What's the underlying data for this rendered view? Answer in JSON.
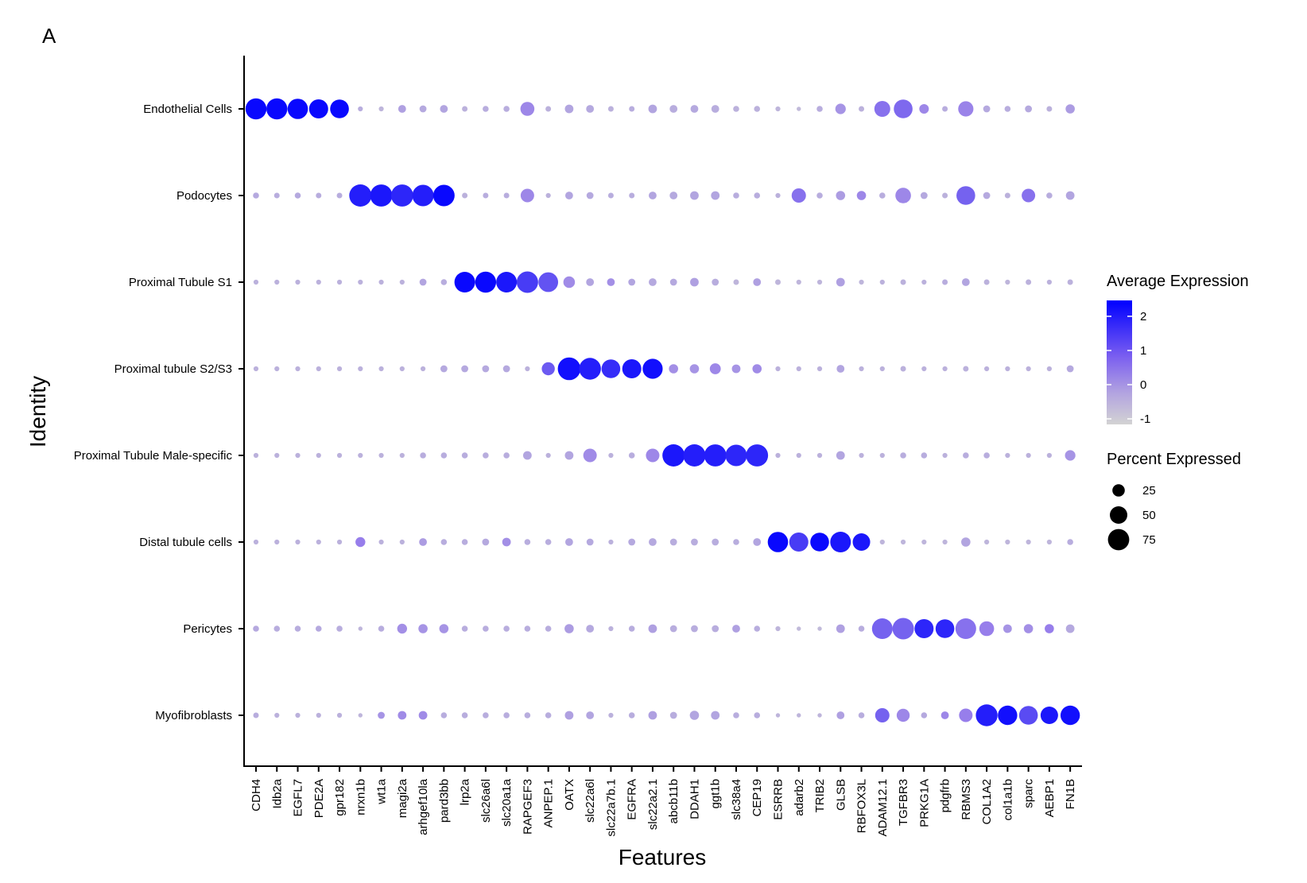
{
  "panel_label": "A",
  "chart_data": {
    "type": "dotplot",
    "title": "",
    "xlabel": "Features",
    "ylabel": "Identity",
    "features": [
      "CDH4",
      "Idb2a",
      "EGFL7",
      "PDE2A",
      "gpr182",
      "nrxn1b",
      "wt1a",
      "magi2a",
      "arhgef10la",
      "pard3bb",
      "lrp2a",
      "slc26a6l",
      "slc20a1a",
      "RAPGEF3",
      "ANPEP.1",
      "OATX",
      "slc22a6l",
      "slc22a7b.1",
      "EGFRA",
      "slc22a2.1",
      "abcb11b",
      "DDAH1",
      "ggt1b",
      "slc38a4",
      "CEP19",
      "ESRRB",
      "adarb2",
      "TRIB2",
      "GLSB",
      "RBFOX3L",
      "ADAM12.1",
      "TGFBR3",
      "PRKG1A",
      "pdgfrb",
      "RBMS3",
      "COL1A2",
      "col1a1b",
      "sparc",
      "AEBP1",
      "FN1B"
    ],
    "identities": [
      "Endothelial Cells",
      "Podocytes",
      "Proximal Tubule S1",
      "Proximal tubule S2/S3",
      "Proximal Tubule Male-specific",
      "Distal tubule cells",
      "Pericytes",
      "Myofibroblasts"
    ],
    "legend": {
      "color_title": "Average Expression",
      "color_ticks": [
        "2",
        "1",
        "0",
        "-1"
      ],
      "color_range": [
        -1.2,
        2.5
      ],
      "color_low": "#d3d3d3",
      "color_high": "#0000ff",
      "size_title": "Percent Expressed",
      "size_ticks": [
        "25",
        "50",
        "75"
      ]
    },
    "rows": [
      {
        "identity": "Endothelial Cells",
        "avg_exp": [
          2.4,
          2.4,
          2.4,
          2.4,
          2.4,
          -0.3,
          -0.5,
          0.0,
          -0.2,
          -0.1,
          -0.4,
          -0.3,
          -0.3,
          0.6,
          -0.4,
          -0.1,
          -0.2,
          -0.4,
          -0.3,
          -0.1,
          -0.3,
          -0.2,
          -0.3,
          -0.4,
          -0.4,
          -0.5,
          -0.6,
          -0.3,
          0.3,
          -0.4,
          1.0,
          1.1,
          0.6,
          -0.3,
          0.7,
          -0.2,
          -0.3,
          -0.2,
          -0.4,
          0.1
        ],
        "pct_exp": [
          72,
          72,
          68,
          60,
          58,
          4,
          4,
          10,
          8,
          10,
          5,
          6,
          6,
          32,
          5,
          12,
          10,
          5,
          5,
          12,
          10,
          10,
          10,
          6,
          6,
          4,
          3,
          6,
          18,
          5,
          42,
          58,
          15,
          5,
          38,
          8,
          6,
          8,
          5,
          14
        ]
      },
      {
        "identity": "Podocytes",
        "avg_exp": [
          -0.2,
          -0.3,
          -0.2,
          -0.3,
          -0.3,
          2.1,
          2.2,
          2.0,
          2.1,
          2.4,
          -0.4,
          -0.3,
          -0.3,
          0.6,
          -0.4,
          -0.1,
          -0.2,
          -0.3,
          -0.3,
          -0.1,
          -0.2,
          -0.1,
          -0.1,
          -0.3,
          -0.3,
          -0.4,
          1.0,
          -0.3,
          0.1,
          0.6,
          -0.3,
          0.6,
          -0.2,
          -0.4,
          1.2,
          -0.2,
          -0.4,
          1.0,
          -0.3,
          -0.1
        ],
        "pct_exp": [
          6,
          5,
          6,
          5,
          5,
          82,
          80,
          80,
          76,
          76,
          5,
          5,
          5,
          30,
          4,
          10,
          8,
          5,
          5,
          10,
          10,
          12,
          12,
          6,
          6,
          4,
          34,
          6,
          14,
          14,
          6,
          40,
          8,
          5,
          58,
          8,
          5,
          30,
          6,
          12
        ]
      },
      {
        "identity": "Proximal Tubule S1",
        "avg_exp": [
          -0.4,
          -0.4,
          -0.4,
          -0.4,
          -0.4,
          -0.4,
          -0.4,
          -0.4,
          -0.1,
          -0.3,
          2.4,
          2.4,
          2.2,
          1.7,
          1.4,
          0.5,
          -0.1,
          0.4,
          -0.1,
          -0.2,
          -0.2,
          0.0,
          -0.3,
          -0.5,
          0.0,
          -0.5,
          -0.5,
          -0.5,
          0.0,
          -0.5,
          -0.4,
          -0.4,
          -0.4,
          -0.3,
          -0.1,
          -0.4,
          -0.5,
          -0.4,
          -0.4,
          -0.4
        ],
        "pct_exp": [
          4,
          4,
          4,
          4,
          4,
          4,
          4,
          4,
          8,
          6,
          70,
          72,
          70,
          76,
          64,
          22,
          10,
          10,
          8,
          10,
          8,
          12,
          8,
          5,
          10,
          5,
          4,
          4,
          12,
          4,
          4,
          5,
          4,
          5,
          10,
          5,
          4,
          5,
          4,
          5
        ]
      },
      {
        "identity": "Proximal tubule S2/S3",
        "avg_exp": [
          -0.4,
          -0.4,
          -0.4,
          -0.4,
          -0.4,
          -0.4,
          -0.4,
          -0.4,
          -0.4,
          -0.2,
          -0.2,
          -0.2,
          -0.2,
          -0.4,
          1.3,
          2.3,
          2.1,
          1.9,
          2.2,
          2.3,
          0.4,
          0.3,
          0.6,
          0.3,
          0.5,
          -0.4,
          -0.4,
          -0.4,
          -0.1,
          -0.4,
          -0.4,
          -0.4,
          -0.4,
          -0.4,
          -0.4,
          -0.4,
          -0.4,
          -0.4,
          -0.4,
          -0.2
        ],
        "pct_exp": [
          4,
          4,
          4,
          4,
          4,
          4,
          4,
          4,
          4,
          8,
          8,
          8,
          8,
          4,
          28,
          85,
          78,
          58,
          60,
          66,
          14,
          14,
          20,
          12,
          14,
          4,
          4,
          4,
          10,
          4,
          4,
          5,
          4,
          4,
          5,
          4,
          4,
          4,
          4,
          8
        ]
      },
      {
        "identity": "Proximal Tubule Male-specific",
        "avg_exp": [
          -0.4,
          -0.4,
          -0.4,
          -0.4,
          -0.4,
          -0.4,
          -0.4,
          -0.4,
          -0.3,
          -0.3,
          -0.3,
          -0.3,
          -0.3,
          -0.1,
          -0.4,
          -0.1,
          0.5,
          -0.4,
          -0.3,
          0.6,
          2.2,
          2.1,
          2.1,
          2.0,
          2.0,
          -0.4,
          -0.4,
          -0.4,
          -0.1,
          -0.4,
          -0.4,
          -0.3,
          -0.3,
          -0.4,
          -0.3,
          -0.3,
          -0.4,
          -0.4,
          -0.4,
          0.3
        ],
        "pct_exp": [
          4,
          4,
          4,
          4,
          4,
          4,
          4,
          4,
          6,
          6,
          6,
          6,
          6,
          12,
          4,
          12,
          30,
          4,
          6,
          30,
          82,
          82,
          80,
          76,
          80,
          4,
          4,
          4,
          12,
          4,
          4,
          6,
          6,
          4,
          6,
          6,
          4,
          4,
          4,
          18
        ]
      },
      {
        "identity": "Distal tubule cells",
        "avg_exp": [
          -0.4,
          -0.4,
          -0.4,
          -0.4,
          -0.4,
          0.8,
          -0.4,
          -0.4,
          0.1,
          -0.3,
          -0.3,
          -0.2,
          0.4,
          -0.3,
          -0.3,
          -0.1,
          -0.2,
          -0.4,
          -0.2,
          -0.2,
          -0.3,
          -0.3,
          -0.3,
          -0.3,
          -0.1,
          2.4,
          1.7,
          2.4,
          2.2,
          2.2,
          -0.5,
          -0.5,
          -0.5,
          -0.5,
          -0.1,
          -0.5,
          -0.5,
          -0.5,
          -0.5,
          -0.3
        ],
        "pct_exp": [
          4,
          4,
          4,
          4,
          4,
          16,
          4,
          4,
          10,
          6,
          6,
          8,
          12,
          6,
          6,
          10,
          8,
          4,
          8,
          10,
          8,
          8,
          8,
          6,
          10,
          68,
          60,
          58,
          70,
          50,
          4,
          4,
          4,
          4,
          14,
          4,
          4,
          4,
          4,
          6
        ]
      },
      {
        "identity": "Pericytes",
        "avg_exp": [
          -0.2,
          -0.3,
          -0.3,
          -0.2,
          -0.3,
          -0.5,
          -0.3,
          0.4,
          0.3,
          0.3,
          -0.3,
          -0.3,
          -0.3,
          -0.3,
          -0.3,
          0.1,
          -0.2,
          -0.4,
          -0.3,
          0.0,
          -0.3,
          -0.3,
          -0.3,
          0.0,
          -0.3,
          -0.5,
          -0.6,
          -0.6,
          0.0,
          -0.3,
          1.2,
          1.2,
          2.0,
          2.0,
          1.0,
          0.8,
          0.3,
          0.4,
          0.8,
          -0.2
        ],
        "pct_exp": [
          6,
          6,
          6,
          6,
          6,
          3,
          6,
          16,
          14,
          14,
          6,
          6,
          6,
          6,
          6,
          14,
          10,
          4,
          6,
          12,
          8,
          8,
          8,
          10,
          6,
          4,
          3,
          3,
          12,
          6,
          70,
          76,
          60,
          58,
          70,
          36,
          12,
          14,
          14,
          12
        ]
      },
      {
        "identity": "Myofibroblasts",
        "avg_exp": [
          -0.3,
          -0.4,
          -0.4,
          -0.4,
          -0.4,
          -0.5,
          0.3,
          0.5,
          0.5,
          -0.3,
          -0.3,
          -0.3,
          -0.3,
          -0.3,
          -0.3,
          0.0,
          -0.1,
          -0.4,
          -0.3,
          0.0,
          -0.3,
          -0.1,
          -0.1,
          -0.3,
          -0.3,
          -0.5,
          -0.5,
          -0.5,
          0.0,
          -0.3,
          1.2,
          0.6,
          -0.2,
          0.6,
          0.8,
          2.1,
          2.3,
          1.5,
          2.2,
          2.3
        ],
        "pct_exp": [
          5,
          4,
          4,
          4,
          4,
          3,
          8,
          12,
          12,
          6,
          6,
          6,
          6,
          6,
          6,
          12,
          10,
          4,
          6,
          12,
          8,
          14,
          12,
          6,
          6,
          3,
          3,
          3,
          10,
          6,
          34,
          28,
          6,
          10,
          30,
          78,
          62,
          58,
          50,
          62
        ]
      }
    ]
  }
}
